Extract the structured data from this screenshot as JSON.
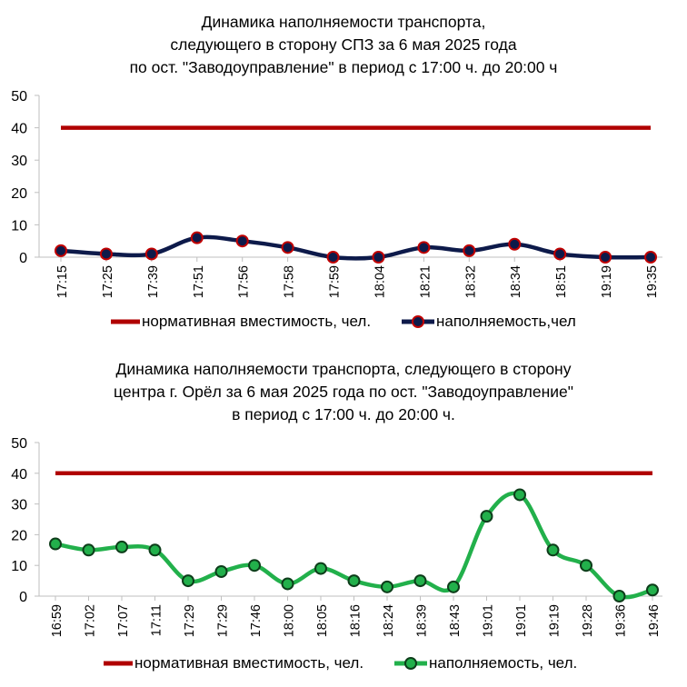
{
  "charts": [
    {
      "title_lines": [
        "Динамика наполняемости транспорта,",
        "следующего в сторону СПЗ за 6 мая 2025 года",
        "по ост. \"Заводоуправление\"  в период с 17:00 ч. до 20:00 ч"
      ],
      "legend": {
        "capacity_label": "нормативная вместимость, чел.",
        "occupancy_label": "наполняемость,чел"
      },
      "colors": {
        "capacity": "#b00000",
        "line": "#0d1a4a",
        "marker_fill": "#0d1a4a",
        "marker_edge": "#c00000"
      }
    },
    {
      "title_lines": [
        "Динамика наполняемости транспорта, следующего в сторону",
        "центра г. Орёл за 6 мая 2025 года по ост. \"Заводоуправление\"",
        "в период с 17:00 ч. до 20:00 ч."
      ],
      "legend": {
        "capacity_label": "нормативная вместимость, чел.",
        "occupancy_label": "наполняемость, чел."
      },
      "colors": {
        "capacity": "#b00000",
        "line": "#22b04b",
        "marker_fill": "#22b04b",
        "marker_edge": "#0d3d1a"
      }
    }
  ],
  "chart_data": [
    {
      "type": "line",
      "ylim": [
        0,
        50
      ],
      "yticks": [
        0,
        10,
        20,
        30,
        40,
        50
      ],
      "categories": [
        "17:15",
        "17:25",
        "17:39",
        "17:51",
        "17:56",
        "17:58",
        "17:59",
        "18:04",
        "18:21",
        "18:32",
        "18:34",
        "18:51",
        "19:19",
        "19:35"
      ],
      "series": [
        {
          "name": "нормативная вместимость, чел.",
          "values": [
            40,
            40,
            40,
            40,
            40,
            40,
            40,
            40,
            40,
            40,
            40,
            40,
            40,
            40
          ]
        },
        {
          "name": "наполняемость,чел",
          "values": [
            2,
            1,
            1,
            6,
            5,
            3,
            0,
            0,
            3,
            2,
            4,
            1,
            0,
            0
          ]
        }
      ]
    },
    {
      "type": "line",
      "ylim": [
        0,
        50
      ],
      "yticks": [
        0,
        10,
        20,
        30,
        40,
        50
      ],
      "categories": [
        "16:59",
        "17:02",
        "17:07",
        "17:11",
        "17:29",
        "17:29",
        "17:46",
        "18:00",
        "18:05",
        "18:16",
        "18:24",
        "18:39",
        "18:43",
        "19:01",
        "19:01",
        "19:19",
        "19:28",
        "19:36",
        "19:46"
      ],
      "series": [
        {
          "name": "нормативная вместимость, чел.",
          "values": [
            40,
            40,
            40,
            40,
            40,
            40,
            40,
            40,
            40,
            40,
            40,
            40,
            40,
            40,
            40,
            40,
            40,
            40,
            40
          ]
        },
        {
          "name": "наполняемость, чел.",
          "values": [
            17,
            15,
            16,
            15,
            5,
            8,
            10,
            4,
            9,
            5,
            3,
            5,
            3,
            26,
            33,
            15,
            10,
            0,
            2
          ]
        }
      ]
    }
  ]
}
